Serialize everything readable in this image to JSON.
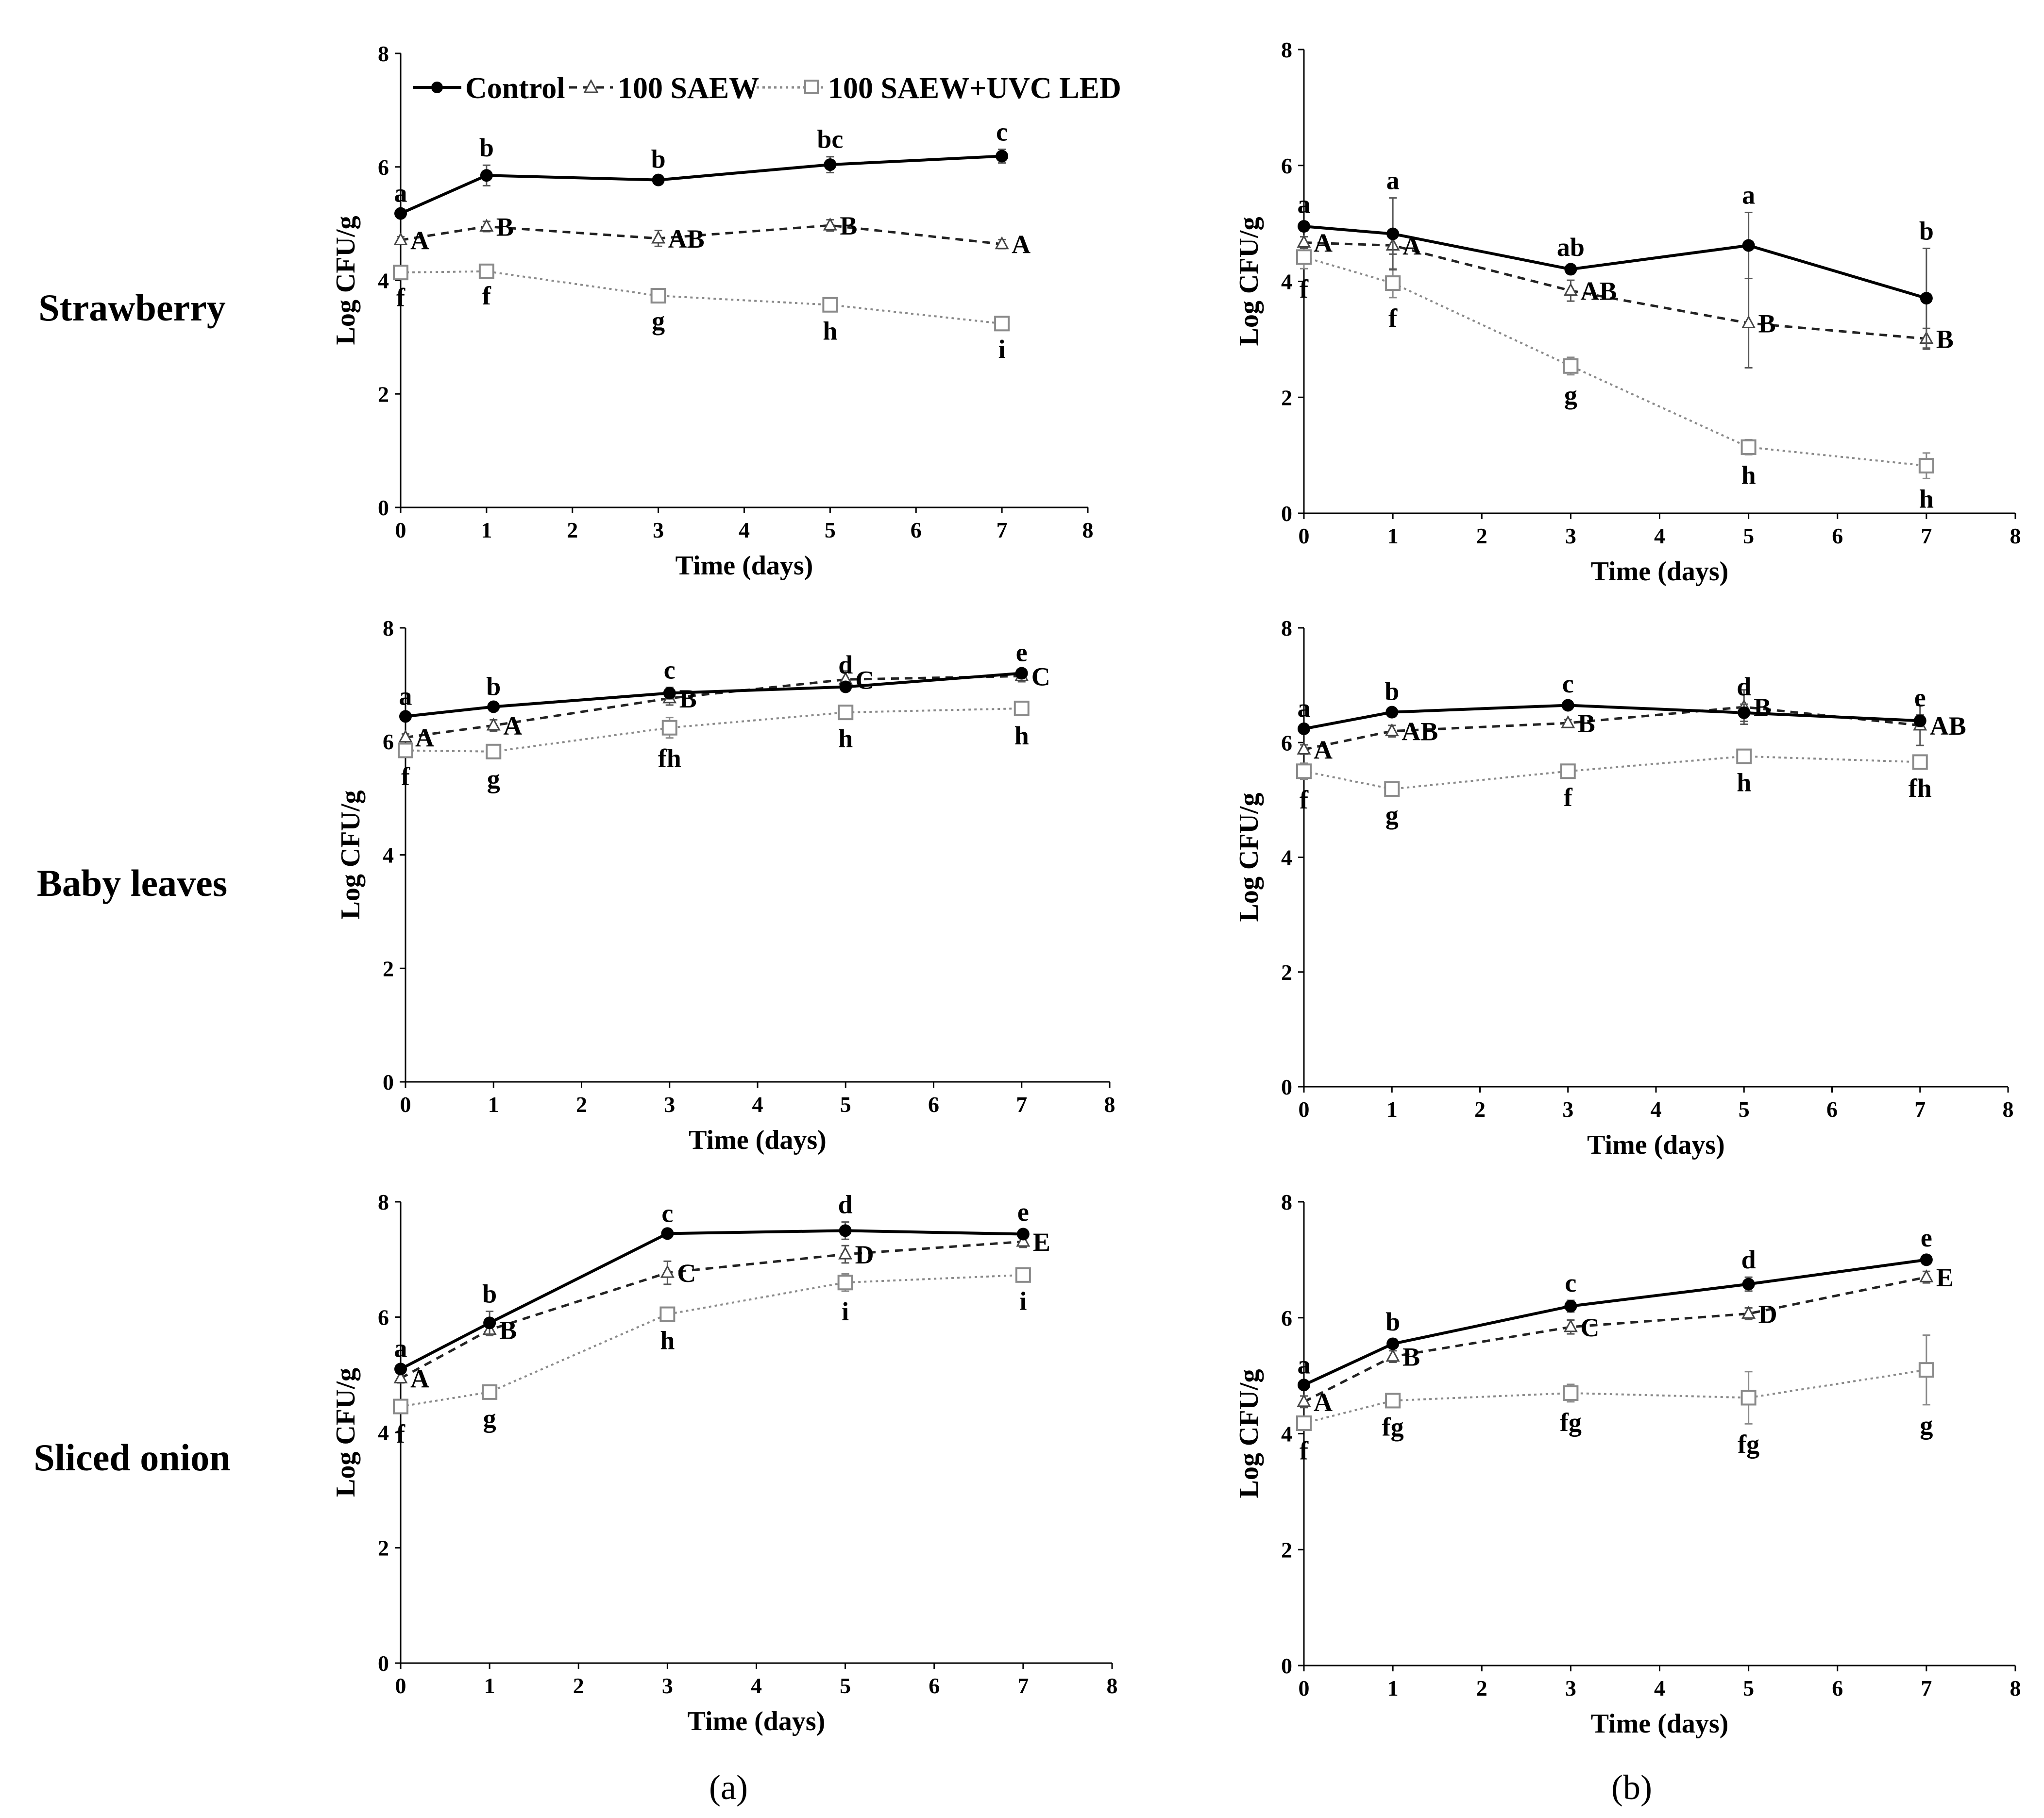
{
  "figure": {
    "row_labels": [
      "Strawberry",
      "Baby leaves",
      "Sliced onion"
    ],
    "column_labels": [
      "(a)",
      "(b)"
    ],
    "legend": [
      "Control",
      "100 SAEW",
      "100 SAEW+UVC LED"
    ],
    "colors": {
      "control": "#000000",
      "saew": "#222222",
      "uvc": "#8a8a8a",
      "axis": "#000000"
    },
    "markers": {
      "control": "filled-circle",
      "saew": "open-triangle",
      "uvc": "open-square"
    },
    "line_styles": {
      "control": "solid",
      "saew": "dashed",
      "uvc": "dotted"
    }
  },
  "chart_data": [
    {
      "id": "a-strawberry",
      "type": "line",
      "xlabel": "Time (days)",
      "ylabel": "Log CFU/g",
      "xlim": [
        0,
        8
      ],
      "ylim": [
        0,
        8
      ],
      "xticks": [
        0,
        1,
        2,
        3,
        4,
        5,
        6,
        7,
        8
      ],
      "yticks": [
        0,
        2,
        4,
        6,
        8
      ],
      "grid": false,
      "legend": "top",
      "x": [
        0,
        1,
        3,
        5,
        7
      ],
      "series": [
        {
          "name": "Control",
          "values": [
            5.18,
            5.85,
            5.77,
            6.04,
            6.19
          ],
          "errors": [
            0.05,
            0.18,
            0.06,
            0.14,
            0.12
          ],
          "letters": [
            "a",
            "b",
            "b",
            "bc",
            "c"
          ]
        },
        {
          "name": "100 SAEW",
          "values": [
            4.71,
            4.95,
            4.74,
            4.97,
            4.64
          ],
          "errors": [
            0.06,
            0.09,
            0.14,
            0.1,
            0.08
          ],
          "letters": [
            "A",
            "B",
            "AB",
            "B",
            "A"
          ]
        },
        {
          "name": "100 SAEW+UVC LED",
          "values": [
            4.14,
            4.16,
            3.73,
            3.57,
            3.24
          ],
          "errors": [
            0.08,
            0.07,
            0.08,
            0.1,
            0.09
          ],
          "letters": [
            "f",
            "f",
            "g",
            "h",
            "i"
          ]
        }
      ]
    },
    {
      "id": "b-strawberry",
      "type": "line",
      "xlabel": "Time (days)",
      "ylabel": "Log CFU/g",
      "xlim": [
        0,
        8
      ],
      "ylim": [
        0,
        8
      ],
      "xticks": [
        0,
        1,
        2,
        3,
        4,
        5,
        6,
        7,
        8
      ],
      "yticks": [
        0,
        2,
        4,
        6,
        8
      ],
      "grid": false,
      "x": [
        0,
        1,
        3,
        5,
        7
      ],
      "series": [
        {
          "name": "Control",
          "values": [
            4.95,
            4.82,
            4.21,
            4.62,
            3.71
          ],
          "errors": [
            0.08,
            0.62,
            0.08,
            0.57,
            0.86
          ],
          "letters": [
            "a",
            "a",
            "ab",
            "a",
            "b"
          ]
        },
        {
          "name": "100 SAEW",
          "values": [
            4.67,
            4.62,
            3.84,
            3.28,
            3.01
          ],
          "errors": [
            0.1,
            0.15,
            0.18,
            0.77,
            0.18
          ],
          "letters": [
            "A",
            "A",
            "AB",
            "B",
            "B"
          ]
        },
        {
          "name": "100 SAEW+UVC LED",
          "values": [
            4.42,
            3.97,
            2.54,
            1.14,
            0.82
          ],
          "errors": [
            0.2,
            0.25,
            0.15,
            0.13,
            0.22
          ],
          "letters": [
            "f",
            "f",
            "g",
            "h",
            "h"
          ]
        }
      ]
    },
    {
      "id": "a-baby-leaves",
      "type": "line",
      "xlabel": "Time (days)",
      "ylabel": "Log CFU/g",
      "xlim": [
        0,
        8
      ],
      "ylim": [
        0,
        8
      ],
      "xticks": [
        0,
        1,
        2,
        3,
        4,
        5,
        6,
        7,
        8
      ],
      "yticks": [
        0,
        2,
        4,
        6,
        8
      ],
      "grid": false,
      "x": [
        0,
        1,
        3,
        5,
        7
      ],
      "series": [
        {
          "name": "Control",
          "values": [
            6.44,
            6.61,
            6.85,
            6.96,
            7.2
          ],
          "errors": [
            0.05,
            0.05,
            0.1,
            0.08,
            0.06
          ],
          "letters": [
            "a",
            "b",
            "c",
            "d",
            "e"
          ]
        },
        {
          "name": "100 SAEW",
          "values": [
            6.07,
            6.28,
            6.76,
            7.09,
            7.15
          ],
          "errors": [
            0.06,
            0.1,
            0.12,
            0.15,
            0.1
          ],
          "letters": [
            "A",
            "A",
            "B",
            "C",
            "C"
          ]
        },
        {
          "name": "100 SAEW+UVC LED",
          "values": [
            5.84,
            5.82,
            6.24,
            6.51,
            6.58
          ],
          "errors": [
            0.1,
            0.12,
            0.18,
            0.1,
            0.12
          ],
          "letters": [
            "f",
            "g",
            "fh",
            "h",
            "h"
          ]
        }
      ]
    },
    {
      "id": "b-baby-leaves",
      "type": "line",
      "xlabel": "Time (days)",
      "ylabel": "Log CFU/g",
      "xlim": [
        0,
        8
      ],
      "ylim": [
        0,
        8
      ],
      "xticks": [
        0,
        1,
        2,
        3,
        4,
        5,
        6,
        7,
        8
      ],
      "yticks": [
        0,
        2,
        4,
        6,
        8
      ],
      "grid": false,
      "x": [
        0,
        1,
        3,
        5,
        7
      ],
      "series": [
        {
          "name": "Control",
          "values": [
            6.24,
            6.53,
            6.65,
            6.52,
            6.38
          ],
          "errors": [
            0.06,
            0.06,
            0.07,
            0.15,
            0.1
          ],
          "letters": [
            "a",
            "b",
            "c",
            "d",
            "e"
          ]
        },
        {
          "name": "100 SAEW",
          "values": [
            5.88,
            6.2,
            6.34,
            6.62,
            6.3
          ],
          "errors": [
            0.08,
            0.1,
            0.06,
            0.3,
            0.35
          ],
          "letters": [
            "A",
            "AB",
            "B",
            "B",
            "AB"
          ]
        },
        {
          "name": "100 SAEW+UVC LED",
          "values": [
            5.5,
            5.19,
            5.5,
            5.76,
            5.66
          ],
          "errors": [
            0.14,
            0.1,
            0.1,
            0.1,
            0.1
          ],
          "letters": [
            "f",
            "g",
            "f",
            "h",
            "fh"
          ]
        }
      ]
    },
    {
      "id": "a-sliced-onion",
      "type": "line",
      "xlabel": "Time (days)",
      "ylabel": "Log CFU/g",
      "xlim": [
        0,
        8
      ],
      "ylim": [
        0,
        8
      ],
      "xticks": [
        0,
        1,
        2,
        3,
        4,
        5,
        6,
        7,
        8
      ],
      "yticks": [
        0,
        2,
        4,
        6,
        8
      ],
      "grid": false,
      "x": [
        0,
        1,
        3,
        5,
        7
      ],
      "series": [
        {
          "name": "Control",
          "values": [
            5.1,
            5.9,
            7.45,
            7.5,
            7.44
          ],
          "errors": [
            0.06,
            0.2,
            0.05,
            0.15,
            0.08
          ],
          "letters": [
            "a",
            "b",
            "c",
            "d",
            "e"
          ]
        },
        {
          "name": "100 SAEW",
          "values": [
            4.94,
            5.78,
            6.77,
            7.09,
            7.31
          ],
          "errors": [
            0.08,
            0.1,
            0.2,
            0.15,
            0.1
          ],
          "letters": [
            "A",
            "B",
            "C",
            "D",
            "E"
          ]
        },
        {
          "name": "100 SAEW+UVC LED",
          "values": [
            4.45,
            4.7,
            6.05,
            6.6,
            6.73
          ],
          "errors": [
            0.12,
            0.1,
            0.1,
            0.15,
            0.1
          ],
          "letters": [
            "f",
            "g",
            "h",
            "i",
            "i"
          ]
        }
      ]
    },
    {
      "id": "b-sliced-onion",
      "type": "line",
      "xlabel": "Time (days)",
      "ylabel": "Log CFU/g",
      "xlim": [
        0,
        8
      ],
      "ylim": [
        0,
        8
      ],
      "xticks": [
        0,
        1,
        2,
        3,
        4,
        5,
        6,
        7,
        8
      ],
      "yticks": [
        0,
        2,
        4,
        6,
        8
      ],
      "grid": false,
      "x": [
        0,
        1,
        3,
        5,
        7
      ],
      "series": [
        {
          "name": "Control",
          "values": [
            4.84,
            5.55,
            6.2,
            6.58,
            7.0
          ],
          "errors": [
            0.05,
            0.08,
            0.1,
            0.12,
            0.08
          ],
          "letters": [
            "a",
            "b",
            "c",
            "d",
            "e"
          ]
        },
        {
          "name": "100 SAEW",
          "values": [
            4.55,
            5.33,
            5.84,
            6.07,
            6.7
          ],
          "errors": [
            0.1,
            0.1,
            0.12,
            0.1,
            0.1
          ],
          "letters": [
            "A",
            "B",
            "C",
            "D",
            "E"
          ]
        },
        {
          "name": "100 SAEW+UVC LED",
          "values": [
            4.18,
            4.57,
            4.7,
            4.62,
            5.1
          ],
          "errors": [
            0.12,
            0.1,
            0.15,
            0.45,
            0.6
          ],
          "letters": [
            "f",
            "fg",
            "fg",
            "fg",
            "g"
          ]
        }
      ]
    }
  ]
}
